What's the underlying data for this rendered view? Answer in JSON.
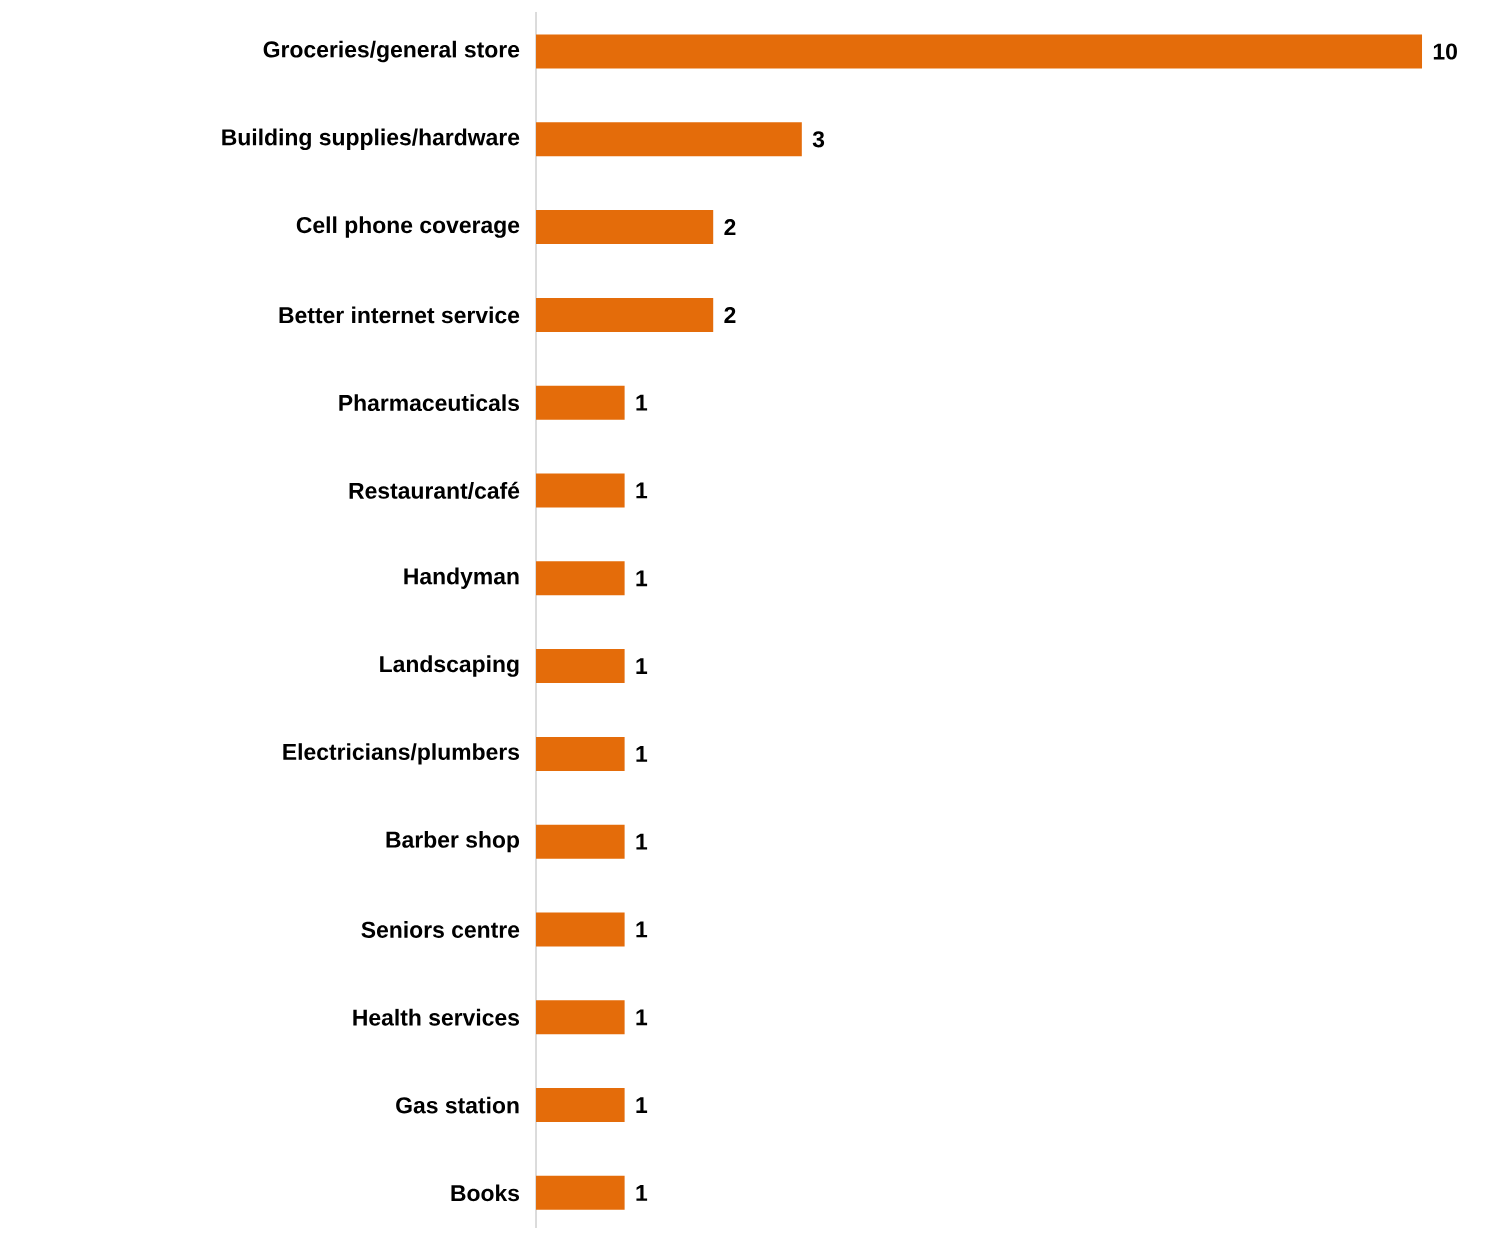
{
  "chart_data": {
    "type": "bar",
    "orientation": "horizontal",
    "data_labels": true,
    "color": "#e46c0a",
    "categories": [
      "Groceries/general store",
      "Building supplies/hardware",
      "Cell phone  coverage",
      "Better internet service",
      "Pharmaceuticals",
      "Restaurant/café",
      "Handyman",
      "Landscaping",
      "Electricians/plumbers",
      "Barber shop",
      "Seniors centre",
      "Health services",
      "Gas station",
      "Books"
    ],
    "values": [
      10,
      3,
      2,
      2,
      1,
      1,
      1,
      1,
      1,
      1,
      1,
      1,
      1,
      1
    ]
  }
}
